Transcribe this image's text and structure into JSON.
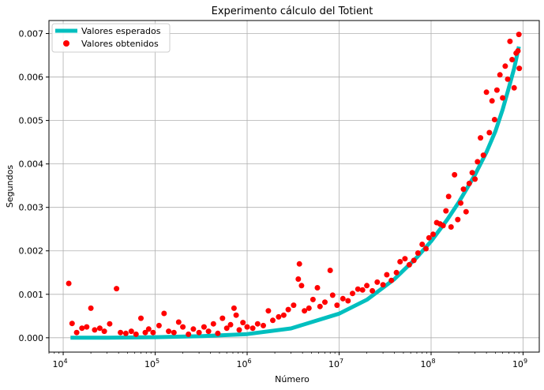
{
  "chart_data": {
    "type": "scatter",
    "title": "Experimento cálculo del Totient",
    "xlabel": "Número",
    "ylabel": "Segundos",
    "xscale": "log",
    "xlim": [
      7000,
      1500000000
    ],
    "ylim": [
      -0.00033,
      0.0073
    ],
    "x_ticks": [
      {
        "value": 10000,
        "base": "10",
        "exp": "4"
      },
      {
        "value": 100000,
        "base": "10",
        "exp": "5"
      },
      {
        "value": 1000000,
        "base": "10",
        "exp": "6"
      },
      {
        "value": 10000000,
        "base": "10",
        "exp": "7"
      },
      {
        "value": 100000000,
        "base": "10",
        "exp": "8"
      },
      {
        "value": 1000000000,
        "base": "10",
        "exp": "9"
      }
    ],
    "y_ticks": [
      {
        "value": 0.0,
        "label": "0.000"
      },
      {
        "value": 0.001,
        "label": "0.001"
      },
      {
        "value": 0.002,
        "label": "0.002"
      },
      {
        "value": 0.003,
        "label": "0.003"
      },
      {
        "value": 0.004,
        "label": "0.004"
      },
      {
        "value": 0.005,
        "label": "0.005"
      },
      {
        "value": 0.006,
        "label": "0.006"
      },
      {
        "value": 0.007,
        "label": "0.007"
      }
    ],
    "grid": true,
    "legend_position": "top-left",
    "series": [
      {
        "name": "Valores esperados",
        "kind": "line",
        "color": "#00bfbf",
        "x": [
          12000,
          30000,
          100000,
          300000,
          1000000,
          3000000,
          10000000,
          20000000,
          40000000,
          70000000,
          100000000,
          150000000,
          200000000,
          300000000,
          400000000,
          500000000,
          600000000,
          700000000,
          800000000,
          900000000
        ],
        "y": [
          0.0,
          3e-06,
          1.3e-05,
          3.5e-05,
          8.5e-05,
          0.000215,
          0.000555,
          0.000875,
          0.00135,
          0.00185,
          0.00222,
          0.00272,
          0.00312,
          0.00375,
          0.00427,
          0.00475,
          0.00525,
          0.00575,
          0.0062,
          0.0067
        ]
      },
      {
        "name": "Valores obtenidos",
        "kind": "scatter",
        "color": "#ff0000",
        "points": [
          [
            11500,
            0.00125
          ],
          [
            12500,
            0.00033
          ],
          [
            14000,
            0.00012
          ],
          [
            16000,
            0.00022
          ],
          [
            18000,
            0.00025
          ],
          [
            20000,
            0.00068
          ],
          [
            22000,
            0.00018
          ],
          [
            25000,
            0.00022
          ],
          [
            28000,
            0.00015
          ],
          [
            32000,
            0.00032
          ],
          [
            38000,
            0.00113
          ],
          [
            42000,
            0.00012
          ],
          [
            48000,
            0.0001
          ],
          [
            55000,
            0.00015
          ],
          [
            62000,
            8e-05
          ],
          [
            70000,
            0.00045
          ],
          [
            78000,
            0.00012
          ],
          [
            85000,
            0.0002
          ],
          [
            95000,
            0.00012
          ],
          [
            110000,
            0.00028
          ],
          [
            125000,
            0.00056
          ],
          [
            140000,
            0.00015
          ],
          [
            160000,
            0.00012
          ],
          [
            180000,
            0.00036
          ],
          [
            200000,
            0.00025
          ],
          [
            230000,
            8e-05
          ],
          [
            260000,
            0.0002
          ],
          [
            300000,
            0.00012
          ],
          [
            340000,
            0.00025
          ],
          [
            380000,
            0.00015
          ],
          [
            430000,
            0.00032
          ],
          [
            480000,
            0.0001
          ],
          [
            540000,
            0.00045
          ],
          [
            600000,
            0.00022
          ],
          [
            660000,
            0.0003
          ],
          [
            720000,
            0.00068
          ],
          [
            760000,
            0.00052
          ],
          [
            820000,
            0.00018
          ],
          [
            900000,
            0.00035
          ],
          [
            1000000,
            0.00025
          ],
          [
            1150000,
            0.00022
          ],
          [
            1300000,
            0.00032
          ],
          [
            1500000,
            0.00028
          ],
          [
            1700000,
            0.00062
          ],
          [
            1900000,
            0.0004
          ],
          [
            2200000,
            0.00048
          ],
          [
            2500000,
            0.00052
          ],
          [
            2800000,
            0.00065
          ],
          [
            3200000,
            0.00075
          ],
          [
            3600000,
            0.00135
          ],
          [
            3700000,
            0.0017
          ],
          [
            3900000,
            0.0012
          ],
          [
            4200000,
            0.00062
          ],
          [
            4700000,
            0.00068
          ],
          [
            5200000,
            0.00088
          ],
          [
            5800000,
            0.00115
          ],
          [
            6200000,
            0.00072
          ],
          [
            7000000,
            0.00082
          ],
          [
            8000000,
            0.00155
          ],
          [
            8500000,
            0.00098
          ],
          [
            9500000,
            0.00075
          ],
          [
            11000000,
            0.0009
          ],
          [
            12500000,
            0.00085
          ],
          [
            14000000,
            0.00102
          ],
          [
            16000000,
            0.00112
          ],
          [
            18000000,
            0.0011
          ],
          [
            20000000,
            0.0012
          ],
          [
            23000000,
            0.00108
          ],
          [
            26000000,
            0.00128
          ],
          [
            30000000,
            0.00122
          ],
          [
            33000000,
            0.00145
          ],
          [
            37000000,
            0.00132
          ],
          [
            42000000,
            0.0015
          ],
          [
            46000000,
            0.00175
          ],
          [
            52000000,
            0.00182
          ],
          [
            58000000,
            0.00168
          ],
          [
            65000000,
            0.00178
          ],
          [
            72000000,
            0.00195
          ],
          [
            80000000,
            0.00215
          ],
          [
            88000000,
            0.00205
          ],
          [
            95000000,
            0.0023
          ],
          [
            105000000,
            0.00238
          ],
          [
            115000000,
            0.00265
          ],
          [
            125000000,
            0.00262
          ],
          [
            135000000,
            0.00258
          ],
          [
            145000000,
            0.00292
          ],
          [
            155000000,
            0.00325
          ],
          [
            165000000,
            0.00255
          ],
          [
            180000000,
            0.00375
          ],
          [
            195000000,
            0.00272
          ],
          [
            210000000,
            0.0031
          ],
          [
            225000000,
            0.00342
          ],
          [
            240000000,
            0.0029
          ],
          [
            260000000,
            0.00355
          ],
          [
            280000000,
            0.0038
          ],
          [
            300000000,
            0.00365
          ],
          [
            320000000,
            0.00405
          ],
          [
            345000000,
            0.0046
          ],
          [
            370000000,
            0.0042
          ],
          [
            400000000,
            0.00565
          ],
          [
            430000000,
            0.00472
          ],
          [
            460000000,
            0.00545
          ],
          [
            490000000,
            0.00502
          ],
          [
            520000000,
            0.0057
          ],
          [
            560000000,
            0.00605
          ],
          [
            600000000,
            0.00552
          ],
          [
            640000000,
            0.00625
          ],
          [
            680000000,
            0.00595
          ],
          [
            720000000,
            0.00682
          ],
          [
            760000000,
            0.0064
          ],
          [
            800000000,
            0.00575
          ],
          [
            840000000,
            0.00655
          ],
          [
            880000000,
            0.0066
          ],
          [
            900000000,
            0.00698
          ],
          [
            910000000,
            0.0062
          ]
        ]
      }
    ]
  }
}
